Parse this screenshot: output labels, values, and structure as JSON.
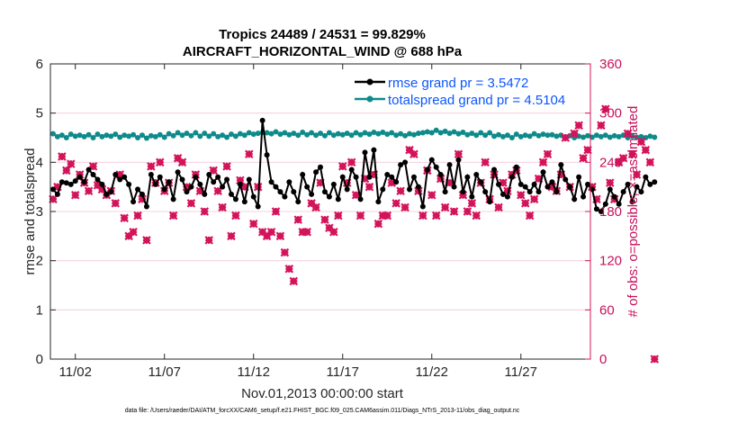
{
  "chart_data": {
    "type": "line",
    "title_line1": "Tropics 24489 / 24531 = 99.829%",
    "title_line2": "AIRCRAFT_HORIZONTAL_WIND @ 688 hPa",
    "xlabel": "Nov.01,2013 00:00:00 start",
    "ylabel": "rmse and totalspread",
    "y2label": "# of obs: o=possible; ×=assimilated",
    "footer": "data file: /Users/raeder/DAI/ATM_forcXX/CAM6_setup/f.e21.FHIST_BGC.f09_025.CAM6assim.011/Diags_NTrS_2013-11/obs_diag_output.nc",
    "xlim": [
      0.6,
      30.9
    ],
    "ylim": [
      0,
      6
    ],
    "y2lim": [
      0,
      360
    ],
    "x_ticks": [
      {
        "x": 2,
        "label": "11/02"
      },
      {
        "x": 7,
        "label": "11/07"
      },
      {
        "x": 12,
        "label": "11/12"
      },
      {
        "x": 17,
        "label": "11/17"
      },
      {
        "x": 22,
        "label": "11/22"
      },
      {
        "x": 27,
        "label": "11/27"
      }
    ],
    "y_ticks": [
      "0",
      "1",
      "2",
      "3",
      "4",
      "5",
      "6"
    ],
    "y2_ticks": [
      "0",
      "60",
      "120",
      "180",
      "240",
      "300",
      "360"
    ],
    "step_days": 0.25,
    "x_start": 0.75,
    "series": [
      {
        "name": "rmse grand pr = 3.5472",
        "axis": "left",
        "color": "#000000",
        "values": [
          3.45,
          3.35,
          3.6,
          3.58,
          3.55,
          3.62,
          3.7,
          3.6,
          3.85,
          3.75,
          3.65,
          3.55,
          3.35,
          3.4,
          3.75,
          3.65,
          3.7,
          3.55,
          3.2,
          3.45,
          3.35,
          3.1,
          3.75,
          3.55,
          3.7,
          3.45,
          3.6,
          3.25,
          3.8,
          3.65,
          3.4,
          3.5,
          3.7,
          3.55,
          3.35,
          3.75,
          3.6,
          3.7,
          3.5,
          3.65,
          3.35,
          3.25,
          3.55,
          3.2,
          3.65,
          3.3,
          3.1,
          4.85,
          4.15,
          3.6,
          3.5,
          3.4,
          3.3,
          3.6,
          3.4,
          3.2,
          3.75,
          3.5,
          3.35,
          3.8,
          3.9,
          3.4,
          3.3,
          3.55,
          3.25,
          3.7,
          3.45,
          3.85,
          3.7,
          3.25,
          4.2,
          3.7,
          4.25,
          3.2,
          3.45,
          3.75,
          3.7,
          3.6,
          3.95,
          4.0,
          3.45,
          3.7,
          3.5,
          3.1,
          3.85,
          4.05,
          3.9,
          3.75,
          3.4,
          3.95,
          3.5,
          4.05,
          3.4,
          3.7,
          3.3,
          3.75,
          3.6,
          3.4,
          3.2,
          3.85,
          3.55,
          3.35,
          3.3,
          3.7,
          3.9,
          3.55,
          3.5,
          3.4,
          3.55,
          3.4,
          3.8,
          3.5,
          3.6,
          3.4,
          3.95,
          3.65,
          3.5,
          3.25,
          3.7,
          3.3,
          3.55,
          3.45,
          3.05,
          3.0,
          3.15,
          3.45,
          3.3,
          3.15,
          3.4,
          3.55,
          3.2,
          3.5,
          3.4,
          3.7,
          3.55,
          3.6
        ]
      },
      {
        "name": "totalspread grand pr = 4.5104",
        "axis": "left",
        "color": "#0e8a8a",
        "values": [
          4.58,
          4.52,
          4.55,
          4.5,
          4.57,
          4.53,
          4.55,
          4.52,
          4.56,
          4.5,
          4.57,
          4.52,
          4.55,
          4.53,
          4.57,
          4.51,
          4.55,
          4.53,
          4.56,
          4.5,
          4.55,
          4.49,
          4.54,
          4.52,
          4.56,
          4.51,
          4.58,
          4.54,
          4.6,
          4.55,
          4.59,
          4.54,
          4.6,
          4.53,
          4.59,
          4.53,
          4.58,
          4.52,
          4.55,
          4.51,
          4.57,
          4.53,
          4.58,
          4.55,
          4.6,
          4.57,
          4.59,
          4.61,
          4.6,
          4.58,
          4.62,
          4.57,
          4.6,
          4.56,
          4.59,
          4.55,
          4.61,
          4.56,
          4.6,
          4.55,
          4.59,
          4.54,
          4.6,
          4.55,
          4.58,
          4.56,
          4.59,
          4.55,
          4.6,
          4.56,
          4.6,
          4.57,
          4.61,
          4.58,
          4.61,
          4.57,
          4.6,
          4.55,
          4.58,
          4.54,
          4.58,
          4.56,
          4.59,
          4.6,
          4.62,
          4.6,
          4.65,
          4.6,
          4.63,
          4.59,
          4.62,
          4.58,
          4.61,
          4.56,
          4.59,
          4.55,
          4.6,
          4.55,
          4.6,
          4.53,
          4.56,
          4.52,
          4.55,
          4.5,
          4.57,
          4.52,
          4.55,
          4.53,
          4.58,
          4.54,
          4.57,
          4.55,
          4.56,
          4.53,
          4.55,
          4.51,
          4.54,
          4.5,
          4.53,
          4.51,
          4.54,
          4.51,
          4.55,
          4.52,
          4.55,
          4.51,
          4.54,
          4.52,
          4.55,
          4.5,
          4.53,
          4.51,
          4.52,
          4.5,
          4.53,
          4.51
        ]
      },
      {
        "name": "assimilated",
        "axis": "right",
        "color": "#d4145a",
        "values": [
          195,
          210,
          247,
          230,
          238,
          200,
          225,
          215,
          205,
          235,
          212,
          207,
          200,
          205,
          190,
          225,
          172,
          150,
          155,
          175,
          195,
          145,
          235,
          215,
          240,
          205,
          215,
          175,
          245,
          240,
          210,
          190,
          225,
          205,
          180,
          145,
          230,
          205,
          185,
          235,
          150,
          175,
          218,
          210,
          250,
          165,
          210,
          155,
          150,
          155,
          180,
          150,
          130,
          110,
          95,
          170,
          155,
          155,
          190,
          185,
          215,
          170,
          160,
          155,
          175,
          235,
          215,
          240,
          200,
          175,
          220,
          210,
          225,
          165,
          175,
          175,
          215,
          190,
          205,
          185,
          255,
          250,
          205,
          175,
          230,
          200,
          175,
          220,
          185,
          215,
          180,
          250,
          200,
          180,
          190,
          175,
          215,
          240,
          195,
          225,
          185,
          215,
          205,
          225,
          230,
          200,
          190,
          175,
          195,
          220,
          240,
          250,
          210,
          205,
          225,
          270,
          210,
          275,
          285,
          245,
          255,
          210,
          195,
          285,
          305,
          215,
          195,
          240,
          245,
          275,
          250,
          225,
          265,
          255,
          240,
          0
        ]
      },
      {
        "name": "possible",
        "axis": "right",
        "color": "#d4145a",
        "values": [
          195,
          210,
          247,
          230,
          238,
          200,
          225,
          215,
          205,
          235,
          212,
          207,
          200,
          205,
          190,
          225,
          172,
          150,
          155,
          175,
          195,
          145,
          235,
          215,
          240,
          205,
          215,
          175,
          245,
          240,
          210,
          190,
          225,
          205,
          180,
          145,
          230,
          205,
          185,
          235,
          150,
          175,
          218,
          210,
          250,
          165,
          210,
          155,
          150,
          155,
          180,
          150,
          130,
          110,
          95,
          170,
          155,
          155,
          190,
          185,
          215,
          170,
          160,
          155,
          175,
          235,
          215,
          240,
          200,
          175,
          220,
          210,
          225,
          165,
          175,
          175,
          215,
          190,
          205,
          185,
          255,
          250,
          205,
          175,
          230,
          200,
          175,
          220,
          185,
          215,
          180,
          250,
          200,
          180,
          190,
          175,
          215,
          240,
          195,
          225,
          185,
          215,
          205,
          225,
          230,
          200,
          190,
          175,
          195,
          220,
          240,
          250,
          210,
          205,
          225,
          270,
          210,
          275,
          285,
          245,
          255,
          210,
          195,
          285,
          305,
          215,
          195,
          240,
          245,
          275,
          250,
          225,
          265,
          255,
          240,
          0
        ]
      }
    ]
  }
}
